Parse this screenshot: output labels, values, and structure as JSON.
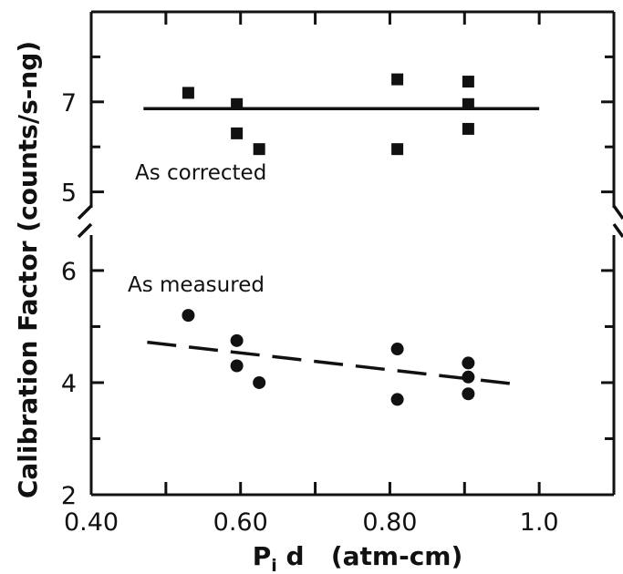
{
  "chart_data": {
    "type": "scatter",
    "xlabel_main": "P",
    "xlabel_sub": "i",
    "xlabel_rest": " d   (atm-cm)",
    "ylabel": "Calibration Factor  (counts/s-ng)",
    "x_ticks": [
      {
        "value": 0.4,
        "label": "0.40"
      },
      {
        "value": 0.6,
        "label": "0.60"
      },
      {
        "value": 0.8,
        "label": "0.80"
      },
      {
        "value": 1.0,
        "label": "1.0"
      }
    ],
    "xlim": [
      0.4,
      1.1
    ],
    "axis_break": true,
    "panels": [
      {
        "name": "upper",
        "ylim": [
          4,
          9
        ],
        "y_ticks": [
          {
            "value": 5,
            "label": "5"
          },
          {
            "value": 7,
            "label": "7"
          }
        ],
        "annotation": "As corrected",
        "marker": "square",
        "points": [
          {
            "x": 0.53,
            "y": 7.2
          },
          {
            "x": 0.595,
            "y": 6.95
          },
          {
            "x": 0.595,
            "y": 6.3
          },
          {
            "x": 0.625,
            "y": 5.95
          },
          {
            "x": 0.81,
            "y": 7.5
          },
          {
            "x": 0.81,
            "y": 5.95
          },
          {
            "x": 0.905,
            "y": 7.45
          },
          {
            "x": 0.905,
            "y": 6.95
          },
          {
            "x": 0.905,
            "y": 6.4
          }
        ],
        "fit_line": {
          "style": "solid",
          "x": [
            0.47,
            1.0
          ],
          "y": [
            6.85,
            6.85
          ]
        }
      },
      {
        "name": "lower",
        "ylim": [
          2,
          6.6
        ],
        "y_ticks": [
          {
            "value": 2,
            "label": "2"
          },
          {
            "value": 4,
            "label": "4"
          },
          {
            "value": 6,
            "label": "6"
          }
        ],
        "annotation": "As measured",
        "marker": "circle",
        "points": [
          {
            "x": 0.53,
            "y": 5.2
          },
          {
            "x": 0.595,
            "y": 4.75
          },
          {
            "x": 0.595,
            "y": 4.3
          },
          {
            "x": 0.625,
            "y": 4.0
          },
          {
            "x": 0.81,
            "y": 4.6
          },
          {
            "x": 0.81,
            "y": 3.7
          },
          {
            "x": 0.905,
            "y": 4.35
          },
          {
            "x": 0.905,
            "y": 4.1
          },
          {
            "x": 0.905,
            "y": 3.8
          }
        ],
        "fit_line": {
          "style": "dashed",
          "x": [
            0.475,
            0.97
          ],
          "y": [
            4.72,
            3.97
          ]
        }
      }
    ]
  }
}
